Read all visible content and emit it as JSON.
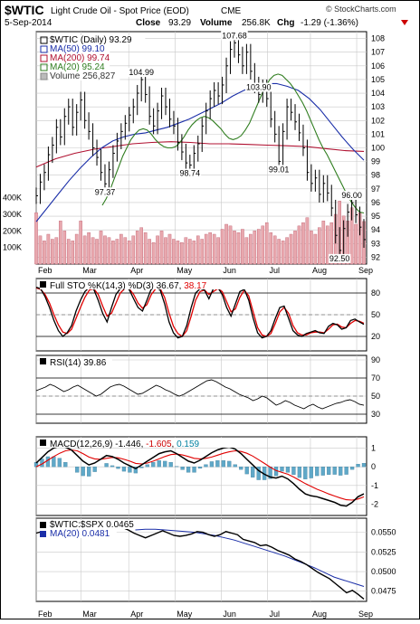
{
  "header": {
    "symbol": "$WTIC",
    "description": "Light Crude Oil - Spot Price (EOD)",
    "exchange": "CME",
    "date": "5-Sep-2014",
    "close_label": "Close",
    "close_value": "93.29",
    "volume_label": "Volume",
    "volume_value": "256.8K",
    "chg_label": "Chg",
    "chg_value": "-1.29 (-1.36%)",
    "watermark": "© StockCharts.com"
  },
  "colors": {
    "price": "#000000",
    "ma50": "#1a2ea8",
    "ma200": "#b01030",
    "ma20": "#2f7d1f",
    "volume": "#e8a8ae",
    "volume_edge": "#c06070",
    "sto_d": "#e00000",
    "macd_signal": "#e00000",
    "macd_hist": "#5fa8c8",
    "grid": "#c8c8c8",
    "negative": "#cc0000",
    "positive": "#0080a0"
  },
  "chart_data": [
    {
      "type": "line",
      "title": "$WTIC (Daily) 93.29",
      "x_ticks": [
        "Feb",
        "Mar",
        "Apr",
        "May",
        "Jun",
        "Jul",
        "Aug",
        "Sep"
      ],
      "ylim": [
        91.5,
        108.5
      ],
      "y_ticks": [
        92,
        93,
        94,
        95,
        96,
        97,
        98,
        99,
        100,
        101,
        102,
        103,
        104,
        105,
        106,
        107,
        108
      ],
      "legend": [
        {
          "label": "$WTIC (Daily) 93.29",
          "color": "#000000"
        },
        {
          "label": "MA(50) 99.10",
          "color": "#1a2ea8"
        },
        {
          "label": "MA(200) 99.74",
          "color": "#b01030"
        },
        {
          "label": "MA(20) 95.24",
          "color": "#2f7d1f"
        },
        {
          "label": "Volume 256,827",
          "color": "#888888"
        }
      ],
      "series": [
        {
          "name": "$WTIC (Daily)",
          "values": [
            96.5,
            97.5,
            98.2,
            99.5,
            100.2,
            101.5,
            100.8,
            102.3,
            103.0,
            101.5,
            102.6,
            103.5,
            102.0,
            101.2,
            100.0,
            99.3,
            98.2,
            97.37,
            98.4,
            99.6,
            100.5,
            101.2,
            101.8,
            102.4,
            103.0,
            104.0,
            104.99,
            103.9,
            102.3,
            101.6,
            102.7,
            103.8,
            103.0,
            102.1,
            101.6,
            100.4,
            99.7,
            98.9,
            98.74,
            99.6,
            100.3,
            101.6,
            102.7,
            103.6,
            104.2,
            103.8,
            104.6,
            106.0,
            107.2,
            107.68,
            106.8,
            106.0,
            107.0,
            105.6,
            104.6,
            103.9,
            104.4,
            103.6,
            102.1,
            101.0,
            99.01,
            101.2,
            103.0,
            102.6,
            101.9,
            101.1,
            100.0,
            98.2,
            97.4,
            97.8,
            96.6,
            97.4,
            96.7,
            95.6,
            93.6,
            92.5,
            94.1,
            95.3,
            96.0,
            95.1,
            94.2,
            93.29
          ]
        },
        {
          "name": "MA(20)",
          "values": [
            95.8,
            96.3,
            97.0,
            97.8,
            98.6,
            99.4,
            100.0,
            100.6,
            101.0,
            101.3,
            101.4,
            101.3,
            101.0,
            100.6,
            100.3,
            100.1,
            100.0,
            100.0,
            100.1,
            100.4,
            100.8,
            101.3,
            101.7,
            102.0,
            102.2,
            102.3,
            102.2,
            102.0,
            101.7,
            101.4,
            101.0,
            100.7,
            100.6,
            100.7,
            100.9,
            101.3,
            101.8,
            102.5,
            103.2,
            103.9,
            104.5,
            105.0,
            105.3,
            105.4,
            105.3,
            105.0,
            104.7,
            104.3,
            103.8,
            103.3,
            102.7,
            102.0,
            101.3,
            100.6,
            100.0,
            99.5,
            98.9,
            98.3,
            97.7,
            97.1,
            96.5,
            96.0,
            95.6,
            95.3,
            95.24
          ]
        },
        {
          "name": "MA(50)",
          "values": [
            94.6,
            95.6,
            96.6,
            97.6,
            98.5,
            99.3,
            100.0,
            100.5,
            100.8,
            101.0,
            101.1,
            101.3,
            101.5,
            101.8,
            102.1,
            102.5,
            102.9,
            103.3,
            103.8,
            104.2,
            104.5,
            104.7,
            104.7,
            104.5,
            104.2,
            103.6,
            102.8,
            101.8,
            100.8,
            99.9,
            99.1
          ]
        },
        {
          "name": "MA(200)",
          "values": [
            98.6,
            99.2,
            99.6,
            99.9,
            100.1,
            100.3,
            100.4,
            100.45,
            100.4,
            100.3,
            100.3,
            100.25,
            100.2,
            100.15,
            100.1,
            99.95,
            99.8,
            99.74
          ]
        },
        {
          "name": "Volume",
          "values": [
            310,
            170,
            140,
            180,
            150,
            160,
            260,
            200,
            150,
            140,
            180,
            260,
            170,
            190,
            160,
            150,
            200,
            170,
            160,
            140,
            150,
            180,
            160,
            140,
            170,
            200,
            220,
            190,
            150,
            130,
            170,
            200,
            160,
            180,
            150,
            140,
            130,
            160,
            150,
            140,
            170,
            150,
            180,
            190,
            180,
            160,
            210,
            240,
            230,
            200,
            190,
            210,
            160,
            180,
            200,
            210,
            230,
            250,
            190,
            170,
            150,
            140,
            160,
            180,
            200,
            230,
            250,
            280,
            200,
            180,
            220,
            260,
            230,
            250,
            300,
            380,
            290,
            260,
            340,
            240,
            310,
            257
          ]
        }
      ],
      "annotations": [
        {
          "text": "97.37",
          "x": 17,
          "y": 97.37
        },
        {
          "text": "104.99",
          "x": 26,
          "y": 104.99
        },
        {
          "text": "98.74",
          "x": 38,
          "y": 98.74
        },
        {
          "text": "107.68",
          "x": 49,
          "y": 107.68
        },
        {
          "text": "103.90",
          "x": 55,
          "y": 103.9
        },
        {
          "text": "99.01",
          "x": 60,
          "y": 99.01
        },
        {
          "text": "96.00",
          "x": 78,
          "y": 96.0
        },
        {
          "text": "92.50",
          "x": 75,
          "y": 92.5
        }
      ],
      "volume_ticks": [
        "400K",
        "300K",
        "200K",
        "100K"
      ]
    },
    {
      "type": "line",
      "title": "Full STO %K(14,3) %D(3) 36.67, 38.17",
      "ylim": [
        0,
        100
      ],
      "y_ticks": [
        20,
        50,
        80
      ],
      "series": [
        {
          "name": "%K",
          "values": [
            88,
            86,
            75,
            60,
            42,
            28,
            20,
            25,
            35,
            55,
            70,
            82,
            88,
            85,
            70,
            52,
            40,
            60,
            78,
            86,
            88,
            85,
            72,
            60,
            55,
            70,
            86,
            88,
            84,
            65,
            40,
            25,
            18,
            20,
            35,
            60,
            80,
            86,
            84,
            72,
            86,
            88,
            78,
            60,
            48,
            65,
            82,
            85,
            70,
            45,
            25,
            18,
            20,
            28,
            45,
            60,
            62,
            45,
            28,
            22,
            20,
            24,
            26,
            28,
            25,
            24,
            34,
            38,
            36,
            30,
            32,
            42,
            44,
            40,
            36.67
          ]
        },
        {
          "name": "%D",
          "values": [
            87,
            85,
            78,
            66,
            50,
            36,
            26,
            24,
            30,
            45,
            60,
            74,
            84,
            86,
            78,
            62,
            48,
            52,
            66,
            80,
            86,
            86,
            78,
            66,
            59,
            64,
            78,
            86,
            86,
            74,
            52,
            34,
            24,
            20,
            28,
            48,
            70,
            82,
            84,
            78,
            82,
            86,
            82,
            68,
            54,
            58,
            74,
            84,
            76,
            54,
            32,
            22,
            20,
            24,
            38,
            54,
            60,
            52,
            35,
            25,
            22,
            22,
            25,
            26,
            26,
            25,
            30,
            36,
            37,
            33,
            32,
            38,
            42,
            41,
            38.17
          ]
        }
      ]
    },
    {
      "type": "line",
      "title": "RSI(14) 39.86",
      "ylim": [
        20,
        95
      ],
      "y_ticks": [
        30,
        50,
        70,
        90
      ],
      "series": [
        {
          "name": "RSI(14)",
          "values": [
            56,
            58,
            60,
            63,
            61,
            58,
            55,
            57,
            60,
            62,
            59,
            56,
            53,
            50,
            52,
            56,
            60,
            62,
            63,
            61,
            58,
            55,
            52,
            53,
            56,
            59,
            62,
            60,
            57,
            55,
            52,
            50,
            52,
            55,
            58,
            61,
            64,
            67,
            68,
            66,
            63,
            60,
            58,
            55,
            52,
            50,
            48,
            45,
            47,
            50,
            48,
            44,
            40,
            42,
            45,
            43,
            40,
            38,
            36,
            39,
            41,
            38,
            36,
            38,
            40,
            42,
            43,
            45,
            46,
            44,
            41,
            39.86
          ]
        }
      ]
    },
    {
      "type": "line",
      "title": "MACD(12,26,9) -1.446, -1.605, 0.159",
      "ylim": [
        -2.6,
        1.6
      ],
      "y_ticks": [
        -2,
        -1,
        0,
        1
      ],
      "series": [
        {
          "name": "MACD",
          "values": [
            0.2,
            0.5,
            0.8,
            1.0,
            1.1,
            1.05,
            0.9,
            0.6,
            0.3,
            0.1,
            0.2,
            0.4,
            0.6,
            0.55,
            0.4,
            0.2,
            0.05,
            -0.1,
            0.1,
            0.3,
            0.5,
            0.7,
            0.8,
            0.85,
            0.7,
            0.5,
            0.3,
            0.2,
            0.35,
            0.55,
            0.75,
            0.9,
            1.0,
            1.05,
            0.95,
            0.7,
            0.4,
            0.1,
            -0.2,
            -0.4,
            -0.55,
            -0.6,
            -0.5,
            -0.65,
            -0.9,
            -1.2,
            -1.45,
            -1.55,
            -1.6,
            -1.7,
            -1.8,
            -1.9,
            -2.05,
            -2.1,
            -1.9,
            -1.6,
            -1.446
          ]
        },
        {
          "name": "Signal",
          "values": [
            0.0,
            0.15,
            0.35,
            0.55,
            0.72,
            0.85,
            0.9,
            0.85,
            0.7,
            0.52,
            0.42,
            0.4,
            0.45,
            0.5,
            0.48,
            0.4,
            0.3,
            0.18,
            0.15,
            0.2,
            0.3,
            0.42,
            0.55,
            0.65,
            0.68,
            0.63,
            0.55,
            0.45,
            0.42,
            0.45,
            0.52,
            0.62,
            0.72,
            0.8,
            0.85,
            0.82,
            0.72,
            0.57,
            0.38,
            0.18,
            -0.02,
            -0.2,
            -0.3,
            -0.4,
            -0.55,
            -0.72,
            -0.9,
            -1.05,
            -1.2,
            -1.32,
            -1.45,
            -1.56,
            -1.67,
            -1.76,
            -1.78,
            -1.72,
            -1.605
          ]
        }
      ]
    },
    {
      "type": "line",
      "title": "$WTIC:$SPX 0.0465",
      "ylim": [
        0.0462,
        0.0568
      ],
      "y_ticks": [
        0.0475,
        0.05,
        0.0525,
        0.055
      ],
      "series": [
        {
          "name": "$WTIC:$SPX",
          "values": [
            0.0549,
            0.0551,
            0.0553,
            0.0556,
            0.0552,
            0.0549,
            0.0546,
            0.0548,
            0.0553,
            0.0556,
            0.0557,
            0.0559,
            0.0558,
            0.056,
            0.0561,
            0.0556,
            0.0553,
            0.0549,
            0.0546,
            0.0543,
            0.0546,
            0.0549,
            0.0552,
            0.0549,
            0.0546,
            0.0545,
            0.0546,
            0.0548,
            0.0551,
            0.055,
            0.0547,
            0.0545,
            0.0547,
            0.0551,
            0.0549,
            0.0547,
            0.0541,
            0.0539,
            0.0537,
            0.0533,
            0.0534,
            0.0531,
            0.0527,
            0.0524,
            0.0521,
            0.0516,
            0.0513,
            0.0509,
            0.0504,
            0.0499,
            0.0495,
            0.0491,
            0.0485,
            0.0479,
            0.0473,
            0.0476,
            0.0471,
            0.0465
          ]
        },
        {
          "name": "MA(20)",
          "values": [
            0.0553,
            0.0554,
            0.0554,
            0.0553,
            0.0552,
            0.0551,
            0.055,
            0.0548,
            0.0546,
            0.0543,
            0.054,
            0.0536,
            0.0532,
            0.0528,
            0.0524,
            0.052,
            0.0515,
            0.051,
            0.0505,
            0.0499,
            0.0493,
            0.0489,
            0.0485,
            0.0481
          ]
        }
      ],
      "legend": [
        {
          "label": "$WTIC:$SPX 0.0465",
          "color": "#000000"
        },
        {
          "label": "MA(20) 0.0481",
          "color": "#1a2ea8"
        }
      ]
    }
  ]
}
